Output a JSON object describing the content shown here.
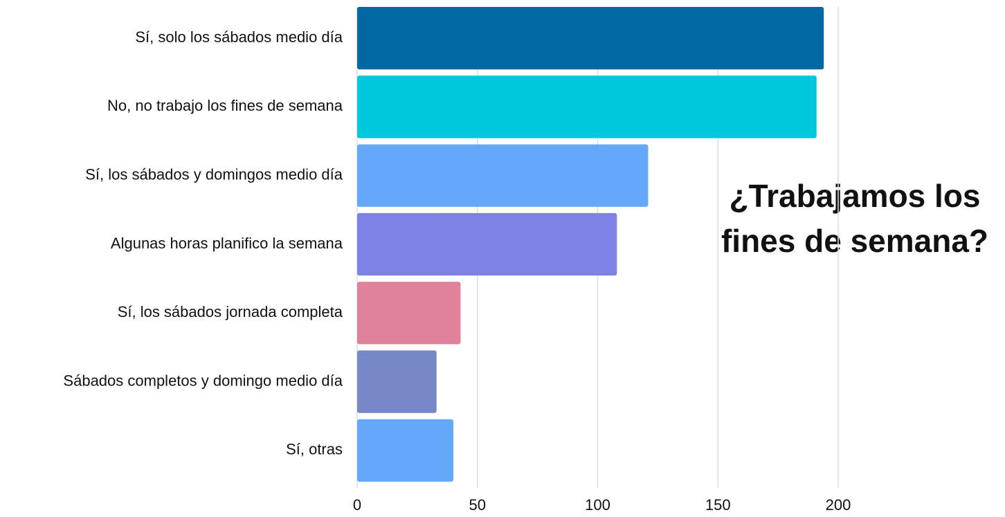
{
  "chart_data": {
    "type": "bar",
    "orientation": "horizontal",
    "title": [
      "¿Trabajamos los",
      "fines de semana?"
    ],
    "categories": [
      "Sí, solo los sábados medio día",
      "No, no trabajo los fines de semana",
      "Sí, los sábados y domingos medio día",
      "Algunas horas planifico la semana",
      "Sí, los sábados jornada completa",
      "Sábados completos y domingo medio día",
      "Sí, otras"
    ],
    "values": [
      194,
      191,
      121,
      108,
      43,
      33,
      40
    ],
    "colors": [
      "#0068a0",
      "#00c8dc",
      "#64a8fa",
      "#7e82e6",
      "#e0829c",
      "#7688c8",
      "#64a8fa"
    ],
    "xlim": [
      0,
      200
    ],
    "xticks": [
      0,
      50,
      100,
      150,
      200
    ],
    "grid": true
  }
}
